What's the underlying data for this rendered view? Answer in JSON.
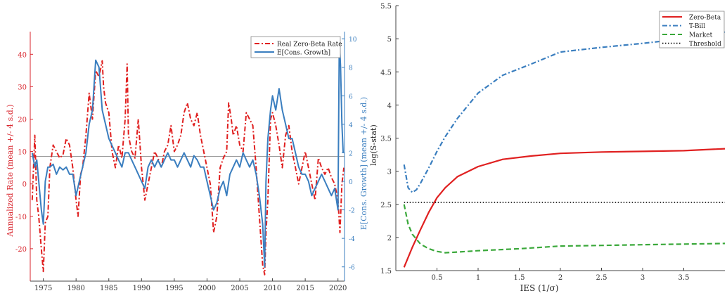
{
  "chart_data": [
    {
      "type": "line",
      "title": "",
      "xlabel": "",
      "ylabel_left": "Annualized Rate (mean +/- 4 s.d.)",
      "ylabel_right": "E[Cons. Growth] (mean +/- 4 s.d.)",
      "xlim": [
        1973,
        2021
      ],
      "ylim_left": [
        -30,
        47
      ],
      "ylim_right": [
        -7,
        10.5
      ],
      "x_ticks": [
        1975,
        1980,
        1985,
        1990,
        1995,
        2000,
        2005,
        2010,
        2015,
        2020
      ],
      "y_ticks_left": [
        -20,
        -10,
        0,
        10,
        20,
        30,
        40
      ],
      "y_ticks_right": [
        -6,
        -4,
        -2,
        0,
        2,
        4,
        6,
        8,
        10
      ],
      "reference_line_left": 8.5,
      "legend": "top-right",
      "colors": {
        "left_axis": "#d9262e",
        "right_axis": "#3a7ebf",
        "reference": "#999999"
      },
      "series": [
        {
          "name": "Real Zero-Beta Rate",
          "axis": "left",
          "color": "#e02020",
          "style": "dashdot",
          "x": [
            1973.3,
            1973.7,
            1974,
            1974.3,
            1974.7,
            1975,
            1975.3,
            1975.7,
            1976,
            1976.5,
            1977,
            1977.5,
            1978,
            1978.5,
            1979,
            1979.5,
            1980,
            1980.3,
            1980.7,
            1981,
            1981.5,
            1982,
            1982.5,
            1983,
            1983.5,
            1984,
            1984.2,
            1984.5,
            1985,
            1985.5,
            1986,
            1986.5,
            1987,
            1987.5,
            1987.8,
            1988,
            1988.5,
            1989,
            1989.5,
            1990,
            1990.5,
            1991,
            1991.5,
            1992,
            1992.5,
            1993,
            1993.5,
            1994,
            1994.5,
            1995,
            1995.5,
            1996,
            1996.5,
            1997,
            1997.5,
            1998,
            1998.5,
            1999,
            1999.5,
            2000,
            2000.5,
            2001,
            2001.5,
            2002,
            2002.5,
            2003,
            2003.3,
            2003.7,
            2004,
            2004.5,
            2005,
            2005.5,
            2006,
            2006.5,
            2007,
            2007.5,
            2008,
            2008.5,
            2008.8,
            2009,
            2009.3,
            2009.7,
            2010,
            2010.5,
            2011,
            2011.5,
            2012,
            2012.5,
            2013,
            2013.5,
            2014,
            2014.5,
            2015,
            2015.5,
            2016,
            2016.5,
            2017,
            2017.5,
            2018,
            2018.5,
            2019,
            2019.5,
            2020,
            2020.3,
            2020.6,
            2020.9
          ],
          "values": [
            -5,
            15,
            -5,
            -10,
            -20,
            -27,
            -12,
            -10,
            5,
            12,
            10,
            8,
            9,
            14,
            12,
            5,
            -5,
            -10,
            3,
            5,
            15,
            28,
            20,
            35,
            33,
            38,
            30,
            25,
            22,
            10,
            5,
            12,
            8,
            20,
            37,
            15,
            10,
            8,
            20,
            5,
            -5,
            0,
            5,
            10,
            8,
            5,
            10,
            12,
            18,
            10,
            12,
            15,
            22,
            25,
            20,
            18,
            22,
            15,
            10,
            5,
            0,
            -15,
            -10,
            5,
            8,
            10,
            25,
            20,
            15,
            18,
            12,
            10,
            22,
            20,
            18,
            5,
            -10,
            -25,
            -28,
            -15,
            -5,
            20,
            22,
            18,
            12,
            5,
            15,
            18,
            10,
            5,
            0,
            5,
            10,
            5,
            0,
            -5,
            8,
            5,
            3,
            5,
            2,
            0,
            -5,
            -15,
            0,
            5
          ]
        },
        {
          "name": "E[Cons. Growth]",
          "axis": "right",
          "color": "#3a7ebf",
          "style": "solid",
          "x": [
            1973.3,
            1973.7,
            1974,
            1974.3,
            1974.7,
            1975,
            1975.3,
            1975.7,
            1976,
            1976.5,
            1977,
            1977.5,
            1978,
            1978.5,
            1979,
            1979.5,
            1980,
            1980.5,
            1981,
            1981.5,
            1982,
            1982.5,
            1983,
            1983.5,
            1984,
            1984.5,
            1985,
            1985.5,
            1986,
            1986.5,
            1987,
            1987.5,
            1988,
            1988.5,
            1989,
            1989.5,
            1990,
            1990.5,
            1991,
            1991.5,
            1992,
            1992.5,
            1993,
            1993.5,
            1994,
            1994.5,
            1995,
            1995.5,
            1996,
            1996.5,
            1997,
            1997.5,
            1998,
            1998.5,
            1999,
            1999.5,
            2000,
            2000.5,
            2001,
            2001.5,
            2002,
            2002.5,
            2003,
            2003.5,
            2004,
            2004.5,
            2005,
            2005.5,
            2006,
            2006.5,
            2007,
            2007.5,
            2008,
            2008.5,
            2008.8,
            2009,
            2009.3,
            2009.7,
            2010,
            2010.5,
            2011,
            2011.5,
            2012,
            2012.5,
            2013,
            2013.5,
            2014,
            2014.5,
            2015,
            2015.5,
            2016,
            2016.5,
            2017,
            2017.5,
            2018,
            2018.5,
            2019,
            2019.5,
            2020,
            2020.2,
            2020.4,
            2020.6,
            2020.8
          ],
          "values": [
            2,
            1,
            1.5,
            0,
            -2,
            -3,
            0,
            1,
            1,
            1.2,
            0.5,
            1,
            0.8,
            1,
            0.5,
            0.5,
            -1,
            0,
            1,
            2,
            4,
            5,
            8.5,
            8,
            5,
            4,
            3,
            2.5,
            2,
            1.5,
            1,
            2,
            2,
            1.5,
            1,
            0.5,
            0,
            -0.5,
            1,
            1.5,
            1,
            1.5,
            1,
            1.5,
            2,
            1.5,
            1.5,
            1,
            1.5,
            2,
            1.5,
            1,
            1.8,
            1.5,
            1,
            1,
            0,
            -1,
            -2,
            -1.5,
            -0.5,
            0,
            -1,
            0.5,
            1,
            1.5,
            1,
            2,
            1.5,
            1,
            1.5,
            0.5,
            -1,
            -3,
            -6,
            0,
            3,
            5,
            6,
            5,
            6.5,
            5,
            4,
            3,
            3,
            2,
            1,
            0.5,
            0.5,
            0,
            -1,
            -0.5,
            0,
            0.5,
            0,
            -0.5,
            -1,
            -0.5,
            -2,
            10,
            8,
            4,
            2
          ]
        }
      ]
    },
    {
      "type": "line",
      "title": "",
      "xlabel": "IES (1/σ)",
      "ylabel": "log(S-stat)",
      "xlim": [
        0,
        4
      ],
      "ylim": [
        1.5,
        5.5
      ],
      "x_ticks": [
        "0.5",
        "1",
        "1.5",
        "2",
        "2.5",
        "3",
        "3.5"
      ],
      "y_ticks": [
        "1.5",
        "2",
        "2.5",
        "3",
        "3.5",
        "4",
        "4.5",
        "5",
        "5.5"
      ],
      "legend": "top-right",
      "series": [
        {
          "name": "Zero-Beta",
          "color": "#e02020",
          "style": "solid",
          "x": [
            0.1,
            0.2,
            0.3,
            0.4,
            0.5,
            0.6,
            0.75,
            1,
            1.3,
            1.65,
            2,
            2.5,
            3,
            3.5,
            4
          ],
          "values": [
            1.55,
            1.85,
            2.12,
            2.38,
            2.6,
            2.75,
            2.92,
            3.07,
            3.18,
            3.23,
            3.27,
            3.29,
            3.3,
            3.31,
            3.34
          ]
        },
        {
          "name": "T-Bill",
          "color": "#3a7ebf",
          "style": "dashdot",
          "x": [
            0.1,
            0.15,
            0.2,
            0.25,
            0.3,
            0.4,
            0.5,
            0.6,
            0.75,
            1,
            1.3,
            1.65,
            2,
            2.5,
            3,
            3.5,
            4
          ],
          "values": [
            3.1,
            2.75,
            2.68,
            2.72,
            2.82,
            3.05,
            3.3,
            3.52,
            3.8,
            4.18,
            4.45,
            4.62,
            4.8,
            4.87,
            4.93,
            5.0,
            5.1
          ]
        },
        {
          "name": "Market",
          "color": "#3aa83a",
          "style": "dashed",
          "x": [
            0.1,
            0.15,
            0.2,
            0.3,
            0.4,
            0.5,
            0.6,
            0.75,
            1,
            1.5,
            2,
            2.5,
            3,
            3.5,
            4
          ],
          "values": [
            2.5,
            2.2,
            2.05,
            1.9,
            1.83,
            1.79,
            1.77,
            1.78,
            1.8,
            1.83,
            1.87,
            1.88,
            1.89,
            1.9,
            1.91
          ]
        },
        {
          "name": "Threshold",
          "color": "#000000",
          "style": "dotted",
          "x": [
            0.1,
            4
          ],
          "values": [
            2.53,
            2.53
          ]
        }
      ]
    }
  ]
}
